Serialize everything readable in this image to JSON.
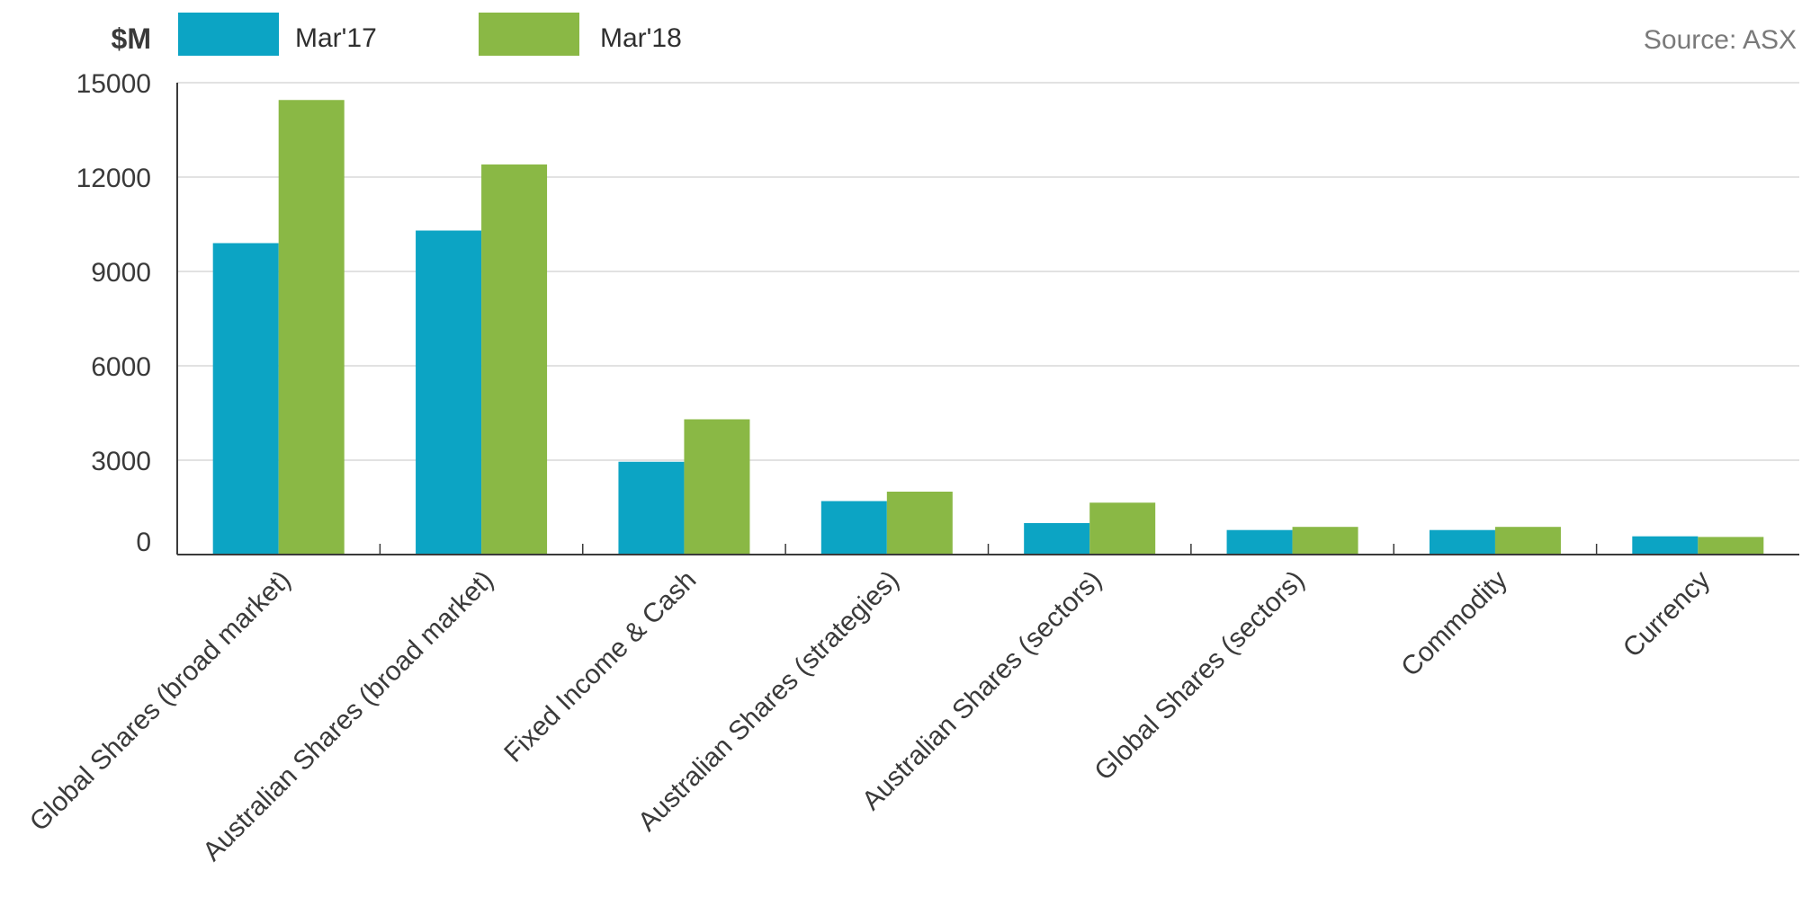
{
  "chart_data": {
    "type": "bar",
    "unit_label": "$M",
    "source": "Source: ASX",
    "categories": [
      "Global Shares (broad market)",
      "Australian Shares (broad market)",
      "Fixed Income & Cash",
      "Australian Shares (strategies)",
      "Australian Shares (sectors)",
      "Global Shares (sectors)",
      "Commodity",
      "Currency"
    ],
    "series": [
      {
        "name": "Mar'17",
        "color": "#0ca4c4",
        "values": [
          9900,
          10300,
          2950,
          1700,
          1000,
          780,
          780,
          580
        ]
      },
      {
        "name": "Mar'18",
        "color": "#8ab845",
        "values": [
          14450,
          12400,
          4300,
          2000,
          1650,
          880,
          880,
          560
        ]
      }
    ],
    "ylim": [
      0,
      15000
    ],
    "yticks": [
      0,
      3000,
      6000,
      9000,
      12000,
      15000
    ],
    "ytick_labels": [
      "0",
      "3000",
      "6000",
      "9000",
      "12000",
      "15000"
    ],
    "grid": true,
    "legend_position": "top-left",
    "xlabel": "",
    "ylabel": ""
  }
}
